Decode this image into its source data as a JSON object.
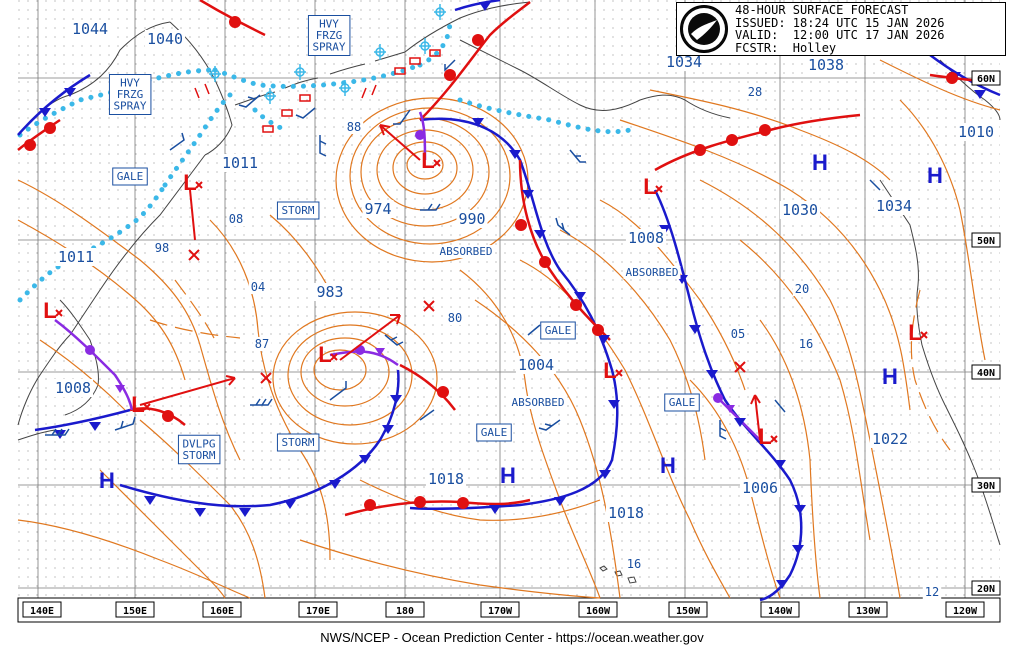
{
  "header": {
    "title": "48-HOUR SURFACE FORECAST",
    "issued": "ISSUED: 18:24 UTC 15 JAN 2026",
    "valid": "VALID:  12:00 UTC 17 JAN 2026",
    "forecaster": "FCSTR:  Holley",
    "logo_label": "NOAA"
  },
  "footer": "NWS/NCEP - Ocean Prediction Center - https://ocean.weather.gov",
  "lon_labels": [
    "140E",
    "150E",
    "160E",
    "170E",
    "180",
    "170W",
    "160W",
    "150W",
    "140W",
    "130W",
    "120W"
  ],
  "lat_labels": [
    "60N",
    "50N",
    "40N",
    "30N",
    "20N"
  ],
  "isobar_labels": [
    "1044",
    "1040",
    "1011",
    "1011",
    "1008",
    "98",
    "974",
    "990",
    "983",
    "87",
    "80",
    "1004",
    "1018",
    "1018",
    "1034",
    "1038",
    "1010",
    "1030",
    "1034",
    "1008",
    "05",
    "1006",
    "1022",
    "28",
    "20",
    "16",
    "08",
    "04",
    "16",
    "12",
    "88"
  ],
  "box_labels": [
    "HVY\nFRZG\nSPRAY",
    "HVY\nFRZG\nSPRAY",
    "GALE",
    "STORM",
    "STORM",
    "DVLPG\nSTORM",
    "GALE",
    "GALE",
    "GALE"
  ],
  "text_labels": [
    "ABSORBED",
    "ABSORBED",
    "ABSORBED"
  ],
  "high_symbol": "H",
  "low_symbol": "L",
  "colors": {
    "isobar": "#e07820",
    "front_cold": "#1a1acc",
    "front_warm": "#e01010",
    "occluded": "#8a2be2",
    "freezing_spray": "#3bb8e8",
    "label_text": "#1a4fa0",
    "grid": "#8a8a8a",
    "coast": "#444444"
  }
}
